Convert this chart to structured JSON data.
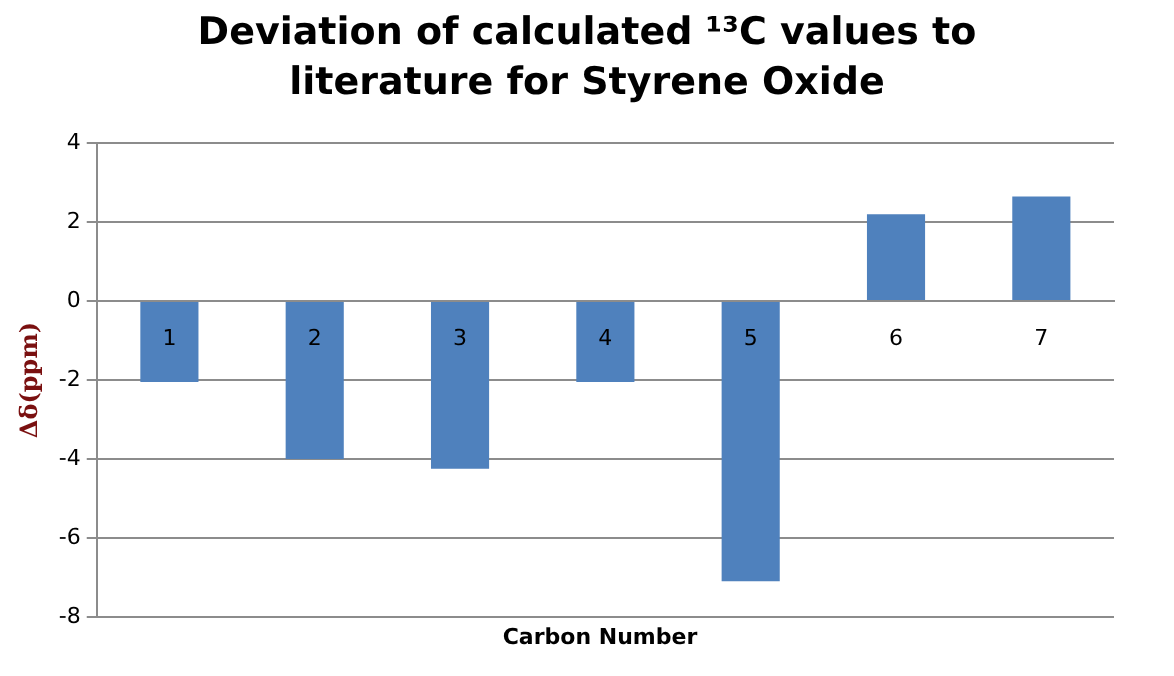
{
  "chart_data": {
    "type": "bar",
    "title": "Deviation of calculated ¹³C values to literature for Styrene Oxide",
    "xlabel": "Carbon Number",
    "ylabel": "Δδ(ppm)",
    "categories": [
      "1",
      "2",
      "3",
      "4",
      "5",
      "6",
      "7"
    ],
    "values": [
      -2.05,
      -4.0,
      -4.25,
      -2.05,
      -7.1,
      2.2,
      2.65
    ],
    "color": "#4f81bd",
    "ylim": [
      -8,
      4
    ],
    "yticks": [
      -8,
      -6,
      -4,
      -2,
      0,
      2,
      4
    ],
    "grid": "y"
  }
}
